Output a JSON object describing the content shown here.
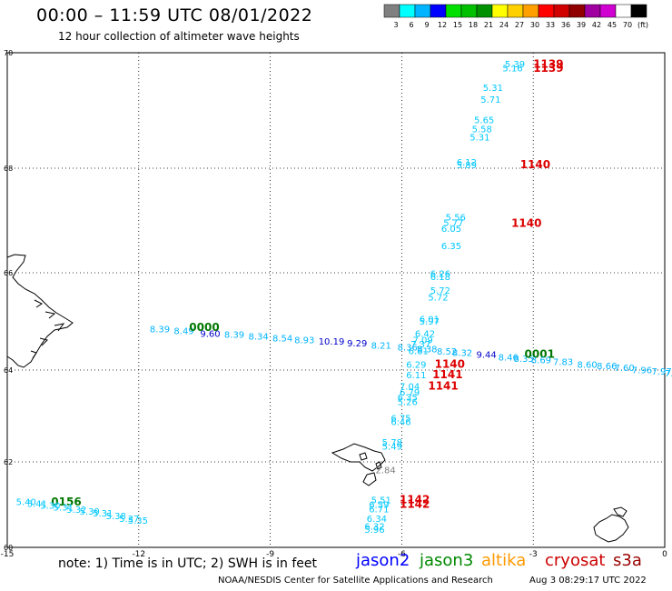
{
  "header": {
    "title": "00:00 – 11:59 UTC 08/01/2022",
    "subtitle": "12 hour collection of altimeter wave heights"
  },
  "legend": {
    "colors": [
      "#808080",
      "#00ffff",
      "#00b4ff",
      "#0000ff",
      "#00e000",
      "#00c000",
      "#009000",
      "#ffff00",
      "#ffd000",
      "#ffa000",
      "#ff0000",
      "#d00000",
      "#900000",
      "#a000a0",
      "#d000d0",
      "#ffffff",
      "#000000"
    ],
    "labels": [
      "3",
      "6",
      "9",
      "12",
      "15",
      "18",
      "21",
      "24",
      "27",
      "30",
      "33",
      "36",
      "39",
      "42",
      "45",
      "70",
      "(ft)"
    ]
  },
  "axes": {
    "x_ticks": [
      "-15",
      "-12",
      "-9",
      "-6",
      "-3",
      "0"
    ],
    "y_ticks": [
      "70",
      "68",
      "66",
      "64",
      "62",
      "60"
    ]
  },
  "footer": {
    "note": "note: 1) Time is in UTC; 2) SWH is in feet",
    "satellites": [
      {
        "name": "jason2",
        "color": "#0000ff"
      },
      {
        "name": "jason3",
        "color": "#008800"
      },
      {
        "name": "altika",
        "color": "#ff9900"
      },
      {
        "name": "cryosat",
        "color": "#cc0000"
      },
      {
        "name": "s3a",
        "color": "#990000"
      }
    ],
    "credit": "NOAA/NESDIS Center for Satellite Applications and Research",
    "timestamp": "Aug  3 08:29:17 UTC 2022"
  },
  "observations": [
    {
      "t": "5.39",
      "lon": -3.65,
      "lat": 69.75,
      "c": "#00c8ff"
    },
    {
      "t": "5.16",
      "lon": -3.7,
      "lat": 69.68,
      "c": "#00c8ff"
    },
    {
      "t": "1139",
      "lon": -3.0,
      "lat": 69.74,
      "c": "#dd0000"
    },
    {
      "t": "1139",
      "lon": -3.0,
      "lat": 69.67,
      "c": "#dd0000"
    },
    {
      "t": "5.31",
      "lon": -4.15,
      "lat": 69.34,
      "c": "#00c8ff"
    },
    {
      "t": "5.71",
      "lon": -4.2,
      "lat": 69.13,
      "c": "#00c8ff"
    },
    {
      "t": "5.65",
      "lon": -4.35,
      "lat": 68.78,
      "c": "#00c8ff"
    },
    {
      "t": "5.58",
      "lon": -4.4,
      "lat": 68.62,
      "c": "#00c8ff"
    },
    {
      "t": "5.31",
      "lon": -4.45,
      "lat": 68.48,
      "c": "#00c8ff"
    },
    {
      "t": "6.12",
      "lon": -4.75,
      "lat": 68.05,
      "c": "#00c8ff"
    },
    {
      "t": "5.89",
      "lon": -4.75,
      "lat": 68.0,
      "c": "#00c8ff"
    },
    {
      "t": "1140",
      "lon": -3.3,
      "lat": 68.0,
      "c": "#dd0000"
    },
    {
      "t": "5.56",
      "lon": -5.0,
      "lat": 67.0,
      "c": "#00c8ff"
    },
    {
      "t": "5.77",
      "lon": -5.05,
      "lat": 66.9,
      "c": "#00c8ff"
    },
    {
      "t": "6.05",
      "lon": -5.1,
      "lat": 66.78,
      "c": "#00c8ff"
    },
    {
      "t": "1140",
      "lon": -3.5,
      "lat": 66.88,
      "c": "#dd0000"
    },
    {
      "t": "6.35",
      "lon": -5.1,
      "lat": 66.45,
      "c": "#00c8ff"
    },
    {
      "t": "6.26",
      "lon": -5.35,
      "lat": 65.92,
      "c": "#00c8ff"
    },
    {
      "t": "6.18",
      "lon": -5.35,
      "lat": 65.85,
      "c": "#00c8ff"
    },
    {
      "t": "5.72",
      "lon": -5.35,
      "lat": 65.57,
      "c": "#00c8ff"
    },
    {
      "t": "5.72",
      "lon": -5.4,
      "lat": 65.43,
      "c": "#00c8ff"
    },
    {
      "t": "6.01",
      "lon": -5.6,
      "lat": 64.98,
      "c": "#00c8ff"
    },
    {
      "t": "5.97",
      "lon": -5.6,
      "lat": 64.93,
      "c": "#00c8ff"
    },
    {
      "t": "6.42",
      "lon": -5.7,
      "lat": 64.68,
      "c": "#00c8ff"
    },
    {
      "t": "7.09",
      "lon": -5.75,
      "lat": 64.55,
      "c": "#00c8ff"
    },
    {
      "t": "7.37",
      "lon": -5.8,
      "lat": 64.47,
      "c": "#00c8ff"
    },
    {
      "t": "6.81",
      "lon": -5.85,
      "lat": 64.33,
      "c": "#00c8ff"
    },
    {
      "t": "6.29",
      "lon": -5.9,
      "lat": 64.05,
      "c": "#00c8ff"
    },
    {
      "t": "1140",
      "lon": -5.25,
      "lat": 64.05,
      "c": "#dd0000"
    },
    {
      "t": "6.11",
      "lon": -5.9,
      "lat": 63.82,
      "c": "#00c8ff"
    },
    {
      "t": "1141",
      "lon": -5.3,
      "lat": 63.82,
      "c": "#dd0000"
    },
    {
      "t": "7.04",
      "lon": -6.05,
      "lat": 63.57,
      "c": "#00c8ff"
    },
    {
      "t": "1141",
      "lon": -5.4,
      "lat": 63.57,
      "c": "#dd0000"
    },
    {
      "t": "6.79",
      "lon": -6.05,
      "lat": 63.45,
      "c": "#00c8ff"
    },
    {
      "t": "6.35",
      "lon": -6.1,
      "lat": 63.34,
      "c": "#00c8ff"
    },
    {
      "t": "5.26",
      "lon": -6.1,
      "lat": 63.24,
      "c": "#00c8ff"
    },
    {
      "t": "6.75",
      "lon": -6.25,
      "lat": 62.88,
      "c": "#00c8ff"
    },
    {
      "t": "6.46",
      "lon": -6.25,
      "lat": 62.8,
      "c": "#00c8ff"
    },
    {
      "t": "5.78",
      "lon": -6.45,
      "lat": 62.36,
      "c": "#00c8ff"
    },
    {
      "t": "5.49",
      "lon": -6.45,
      "lat": 62.27,
      "c": "#00c8ff"
    },
    {
      "t": "2.84",
      "lon": -6.6,
      "lat": 61.73,
      "c": "#808080"
    },
    {
      "t": "5.51",
      "lon": -6.7,
      "lat": 61.03,
      "c": "#00c8ff"
    },
    {
      "t": "6.59",
      "lon": -6.75,
      "lat": 60.93,
      "c": "#00c8ff"
    },
    {
      "t": "1142",
      "lon": -6.05,
      "lat": 61.03,
      "c": "#dd0000"
    },
    {
      "t": "1142",
      "lon": -6.05,
      "lat": 60.93,
      "c": "#dd0000"
    },
    {
      "t": "6.71",
      "lon": -6.75,
      "lat": 60.82,
      "c": "#00c8ff"
    },
    {
      "t": "6.34",
      "lon": -6.8,
      "lat": 60.6,
      "c": "#00c8ff"
    },
    {
      "t": "6.32",
      "lon": -6.85,
      "lat": 60.42,
      "c": "#00c8ff"
    },
    {
      "t": "5.96",
      "lon": -6.85,
      "lat": 60.34,
      "c": "#00c8ff"
    },
    {
      "t": "8.39",
      "lon": -11.75,
      "lat": 64.78,
      "c": "#00b4ff"
    },
    {
      "t": "8.49",
      "lon": -11.2,
      "lat": 64.74,
      "c": "#00b4ff"
    },
    {
      "t": "0000",
      "lon": -10.85,
      "lat": 64.8,
      "c": "#007700"
    },
    {
      "t": "9.60",
      "lon": -10.6,
      "lat": 64.68,
      "c": "#0000cc"
    },
    {
      "t": "8.39",
      "lon": -10.05,
      "lat": 64.66,
      "c": "#00b4ff"
    },
    {
      "t": "8.34",
      "lon": -9.5,
      "lat": 64.63,
      "c": "#00b4ff"
    },
    {
      "t": "8.54",
      "lon": -8.95,
      "lat": 64.59,
      "c": "#00b4ff"
    },
    {
      "t": "8.93",
      "lon": -8.45,
      "lat": 64.55,
      "c": "#00b4ff"
    },
    {
      "t": "10.19",
      "lon": -7.9,
      "lat": 64.52,
      "c": "#0000cc"
    },
    {
      "t": "9.29",
      "lon": -7.25,
      "lat": 64.49,
      "c": "#0000cc"
    },
    {
      "t": "8.21",
      "lon": -6.7,
      "lat": 64.44,
      "c": "#00b4ff"
    },
    {
      "t": "8.36",
      "lon": -6.1,
      "lat": 64.4,
      "c": "#00b4ff"
    },
    {
      "t": "8.38",
      "lon": -5.65,
      "lat": 64.36,
      "c": "#00b4ff"
    },
    {
      "t": "8.52",
      "lon": -5.2,
      "lat": 64.32,
      "c": "#00b4ff"
    },
    {
      "t": "8.32",
      "lon": -4.85,
      "lat": 64.29,
      "c": "#00b4ff"
    },
    {
      "t": "9.44",
      "lon": -4.3,
      "lat": 64.25,
      "c": "#0000cc"
    },
    {
      "t": "8.46",
      "lon": -3.8,
      "lat": 64.2,
      "c": "#00b4ff"
    },
    {
      "t": "8.35",
      "lon": -3.45,
      "lat": 64.17,
      "c": "#00b4ff"
    },
    {
      "t": "0001",
      "lon": -3.2,
      "lat": 64.25,
      "c": "#007700"
    },
    {
      "t": "8.69",
      "lon": -3.05,
      "lat": 64.14,
      "c": "#00b4ff"
    },
    {
      "t": "7.83",
      "lon": -2.55,
      "lat": 64.1,
      "c": "#00b4ff"
    },
    {
      "t": "8.60",
      "lon": -2.0,
      "lat": 64.05,
      "c": "#00b4ff"
    },
    {
      "t": "8.66",
      "lon": -1.55,
      "lat": 64.02,
      "c": "#00b4ff"
    },
    {
      "t": "7.60",
      "lon": -1.15,
      "lat": 63.98,
      "c": "#00b4ff"
    },
    {
      "t": "7.96",
      "lon": -0.75,
      "lat": 63.93,
      "c": "#00b4ff"
    },
    {
      "t": "7.97",
      "lon": -0.3,
      "lat": 63.9,
      "c": "#00b4ff"
    },
    {
      "t": "7.7",
      "lon": 0.0,
      "lat": 63.86,
      "c": "#00b4ff"
    },
    {
      "t": "5.40",
      "lon": -14.8,
      "lat": 60.99,
      "c": "#00c8ff"
    },
    {
      "t": "5.41",
      "lon": -14.55,
      "lat": 60.95,
      "c": "#00c8ff"
    },
    {
      "t": "0156",
      "lon": -14.0,
      "lat": 60.98,
      "c": "#007700"
    },
    {
      "t": "5.30",
      "lon": -14.25,
      "lat": 60.9,
      "c": "#00c8ff"
    },
    {
      "t": "5.31",
      "lon": -13.95,
      "lat": 60.86,
      "c": "#00c8ff"
    },
    {
      "t": "5.32",
      "lon": -13.65,
      "lat": 60.81,
      "c": "#00c8ff"
    },
    {
      "t": "5.39",
      "lon": -13.35,
      "lat": 60.77,
      "c": "#00c8ff"
    },
    {
      "t": "5.31",
      "lon": -13.05,
      "lat": 60.72,
      "c": "#00c8ff"
    },
    {
      "t": "5.38",
      "lon": -12.75,
      "lat": 60.66,
      "c": "#00c8ff"
    },
    {
      "t": "5.37",
      "lon": -12.45,
      "lat": 60.6,
      "c": "#00c8ff"
    },
    {
      "t": "5.35",
      "lon": -12.25,
      "lat": 60.55,
      "c": "#00c8ff"
    }
  ]
}
